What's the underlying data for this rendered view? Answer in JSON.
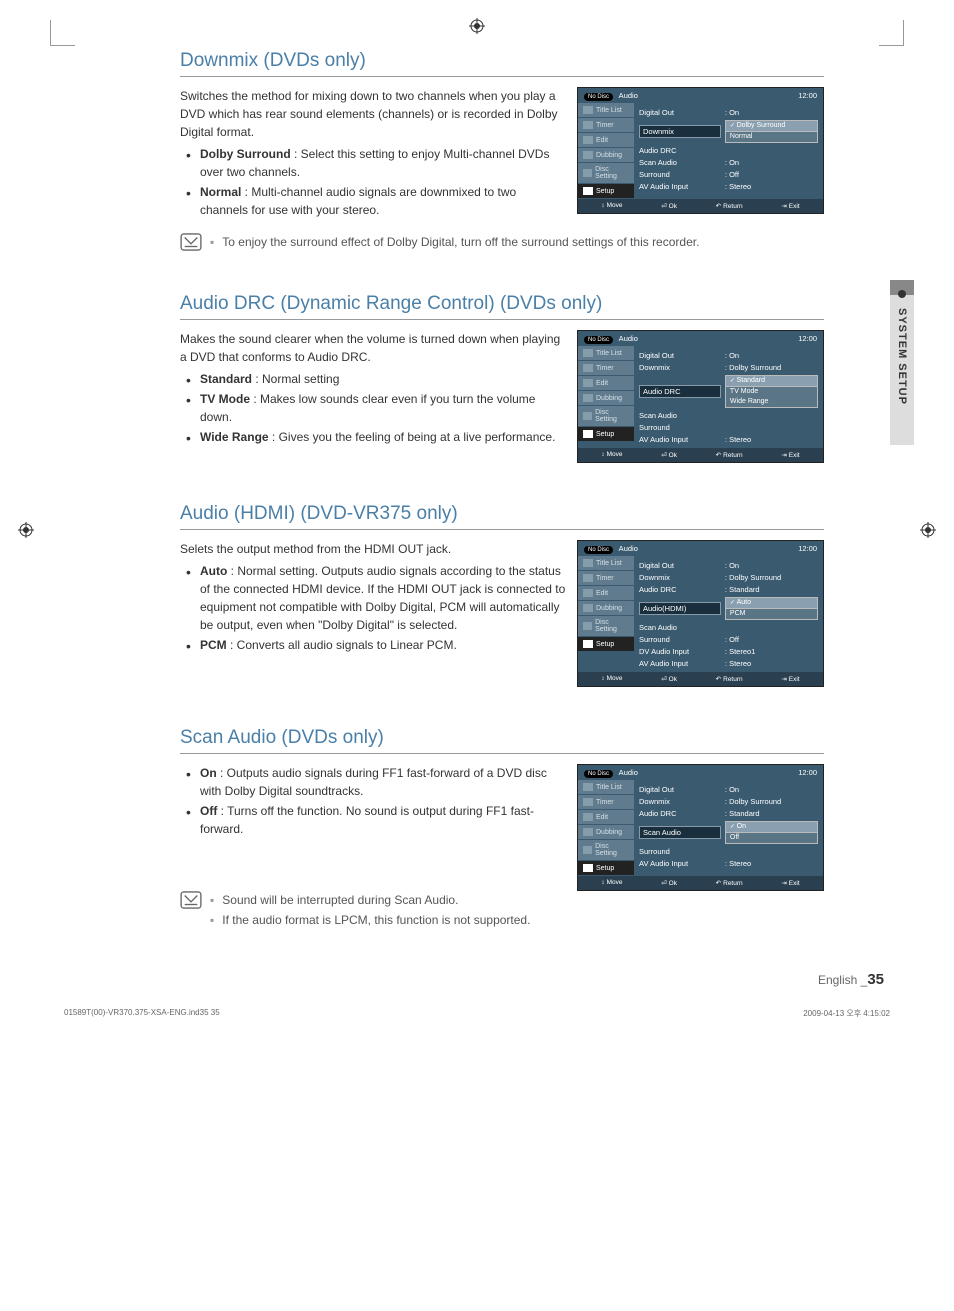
{
  "sideTab": "SYSTEM SETUP",
  "footer": {
    "lang": "English",
    "page": "35",
    "file": "01589T(00)-VR370.375-XSA-ENG.ind35   35",
    "timestamp": "2009-04-13   오후 4:15:02"
  },
  "osd_common": {
    "nodisc": "No Disc",
    "title": "Audio",
    "time": "12:00",
    "tabs": [
      "Title List",
      "Timer",
      "Edit",
      "Dubbing",
      "Disc Setting",
      "Setup"
    ],
    "activeTab": "Setup",
    "footer": [
      {
        "sym": "↕",
        "label": "Move"
      },
      {
        "sym": "⏎",
        "label": "Ok"
      },
      {
        "sym": "↶",
        "label": "Return"
      },
      {
        "sym": "⇥",
        "label": "Exit"
      }
    ]
  },
  "sections": [
    {
      "title": "Downmix (DVDs only)",
      "intro": "Switches the method for mixing down to two channels when you play a DVD which has rear sound elements (channels) or is recorded in Dolby Digital format.",
      "bullets": [
        {
          "strong": "Dolby Surround",
          "text": " : Select this setting to enjoy Multi-channel DVDs over two channels."
        },
        {
          "strong": "Normal",
          "text": " : Multi-channel audio signals are downmixed to two channels for use with your stereo."
        }
      ],
      "notes": [
        "To enjoy the surround effect of Dolby Digital, turn off the surround settings of this recorder."
      ],
      "osd": {
        "rows": [
          {
            "lbl": "Digital Out",
            "val": ": On"
          },
          {
            "lbl": "Downmix",
            "dropdown": {
              "selected": "Dolby Surround",
              "options": [
                "Normal"
              ]
            }
          },
          {
            "lbl": "Audio DRC",
            "val": ""
          },
          {
            "lbl": "Scan Audio",
            "val": ": On"
          },
          {
            "lbl": "Surround",
            "val": ": Off"
          },
          {
            "lbl": "AV Audio Input",
            "val": ": Stereo"
          }
        ],
        "highlightLabel": "Downmix"
      }
    },
    {
      "title": "Audio DRC (Dynamic Range Control) (DVDs only)",
      "intro": "Makes the sound clearer when the volume is turned down when playing a DVD that conforms to Audio DRC.",
      "bullets": [
        {
          "strong": "Standard",
          "text": " : Normal setting"
        },
        {
          "strong": "TV Mode",
          "text": " : Makes low sounds clear even if you turn the volume down."
        },
        {
          "strong": "Wide Range",
          "text": " : Gives you the feeling of being at a live performance."
        }
      ],
      "notes": [],
      "osd": {
        "rows": [
          {
            "lbl": "Digital Out",
            "val": ": On"
          },
          {
            "lbl": "Downmix",
            "val": ": Dolby Surround"
          },
          {
            "lbl": "Audio DRC",
            "dropdown": {
              "selected": "Standard",
              "options": [
                "TV Mode",
                "Wide Range"
              ]
            }
          },
          {
            "lbl": "Scan Audio",
            "val": ""
          },
          {
            "lbl": "Surround",
            "val": ""
          },
          {
            "lbl": "AV Audio Input",
            "val": ": Stereo"
          }
        ],
        "highlightLabel": "Audio DRC"
      }
    },
    {
      "title": "Audio (HDMI) (DVD-VR375 only)",
      "intro": "Selets the output method from the HDMI OUT jack.",
      "bullets": [
        {
          "strong": "Auto",
          "text": " : Normal setting. Outputs audio signals according to the status of the connected HDMI device. If the HDMI OUT jack is connected to equipment not compatible with Dolby Digital, PCM will automatically be output, even when \"Dolby Digital\" is selected."
        },
        {
          "strong": "PCM",
          "text": " : Converts all audio signals to Linear PCM."
        }
      ],
      "notes": [],
      "osd": {
        "rows": [
          {
            "lbl": "Digital Out",
            "val": ": On"
          },
          {
            "lbl": "Downmix",
            "val": ": Dolby Surround"
          },
          {
            "lbl": "Audio DRC",
            "val": ": Standard"
          },
          {
            "lbl": "Audio(HDMI)",
            "dropdown": {
              "selected": "Auto",
              "options": [
                "PCM"
              ]
            }
          },
          {
            "lbl": "Scan Audio",
            "val": ""
          },
          {
            "lbl": "Surround",
            "val": ": Off"
          },
          {
            "lbl": "DV Audio Input",
            "val": ": Stereo1"
          },
          {
            "lbl": "AV Audio Input",
            "val": ": Stereo"
          }
        ],
        "highlightLabel": "Audio(HDMI)"
      }
    },
    {
      "title": "Scan Audio (DVDs only)",
      "intro": "",
      "bullets": [
        {
          "strong": "On",
          "text": " : Outputs audio signals during FF1 fast-forward of a DVD disc with Dolby Digital soundtracks."
        },
        {
          "strong": "Off",
          "text": " : Turns off the function. No sound is output during FF1 fast-forward."
        }
      ],
      "notes": [
        "Sound will be interrupted during Scan Audio.",
        "If the audio format is LPCM, this function is not supported."
      ],
      "osd": {
        "rows": [
          {
            "lbl": "Digital Out",
            "val": ": On"
          },
          {
            "lbl": "Downmix",
            "val": ": Dolby Surround"
          },
          {
            "lbl": "Audio DRC",
            "val": ": Standard"
          },
          {
            "lbl": "Scan Audio",
            "dropdown": {
              "selected": "On",
              "options": [
                "Off"
              ]
            }
          },
          {
            "lbl": "Surround",
            "val": ""
          },
          {
            "lbl": "AV Audio Input",
            "val": ": Stereo"
          }
        ],
        "highlightLabel": "Scan Audio"
      }
    }
  ]
}
